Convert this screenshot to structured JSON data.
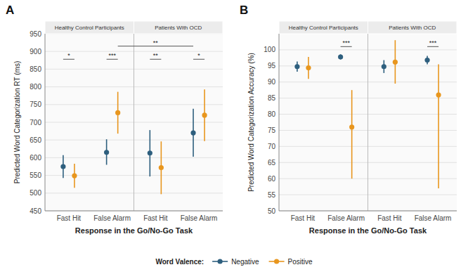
{
  "chart_data": [
    {
      "type": "errorbar",
      "title": "A",
      "xlabel": "Response in the Go/No-Go Task",
      "ylabel": "Predicted Word Categorization RT (ms)",
      "groups": [
        "Healthy Control Participants",
        "Patients With OCD"
      ],
      "categories": [
        "Fast Hit",
        "False Alarm",
        "Fast Hit",
        "False Alarm"
      ],
      "series": [
        {
          "name": "Negative",
          "color": "#2E5F7E",
          "values": [
            575,
            615,
            613,
            670
          ],
          "ci_low": [
            543,
            580,
            547,
            603
          ],
          "ci_high": [
            607,
            652,
            678,
            738
          ]
        },
        {
          "name": "Positive",
          "color": "#E8961E",
          "values": [
            549,
            727,
            572,
            720
          ],
          "ci_low": [
            515,
            668,
            497,
            647
          ],
          "ci_high": [
            583,
            786,
            646,
            793
          ]
        }
      ],
      "annotations": [
        {
          "label": "*",
          "category": 0,
          "y": 878
        },
        {
          "label": "***",
          "category": 1,
          "y": 878
        },
        {
          "label": "**",
          "category": 2,
          "y": 878
        },
        {
          "label": "*",
          "category": 3,
          "y": 878
        },
        {
          "label": "**",
          "from": 1,
          "to": 3,
          "y": 915
        }
      ],
      "ylim": [
        450,
        950
      ],
      "yticks": [
        450,
        500,
        550,
        600,
        650,
        700,
        750,
        800,
        850,
        900,
        950
      ],
      "grid": true,
      "legend": "bottom",
      "legend_title": "Word Valence:"
    },
    {
      "type": "errorbar",
      "title": "B",
      "xlabel": "Response in the Go/No-Go Task",
      "ylabel": "Predicted Word Categorization Accuracy (%)",
      "groups": [
        "Healthy Control Participants",
        "Patients With OCD"
      ],
      "categories": [
        "Fast Hit",
        "False Alarm",
        "Fast Hit",
        "False Alarm"
      ],
      "series": [
        {
          "color": "#2E5F7E",
          "values": [
            94.8,
            97.8,
            94.8,
            96.8
          ],
          "ci_low": [
            93.2,
            97.0,
            92.8,
            95.5
          ],
          "ci_high": [
            96.4,
            98.6,
            96.8,
            98.1
          ]
        },
        {
          "color": "#E8961E",
          "values": [
            94.4,
            76.0,
            96.2,
            86.0
          ],
          "ci_low": [
            91.0,
            60.0,
            89.5,
            57.0
          ],
          "ci_high": [
            97.8,
            87.5,
            103.0,
            95.5
          ]
        }
      ],
      "annotations": [
        {
          "label": "***",
          "category": 1,
          "y": 101.0
        },
        {
          "label": "***",
          "category": 3,
          "y": 101.0
        }
      ],
      "ylim": [
        50,
        105
      ],
      "yticks": [
        50,
        55,
        60,
        65,
        70,
        75,
        80,
        85,
        90,
        95,
        100
      ],
      "grid": true
    }
  ]
}
